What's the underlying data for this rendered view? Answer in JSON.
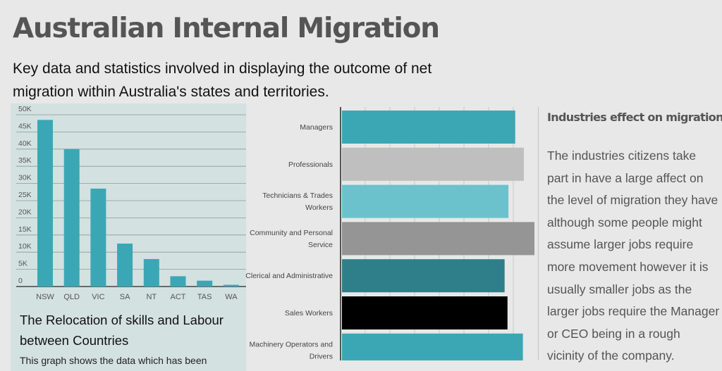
{
  "title": "Australian Internal Migration",
  "subtitle": "Key data and statistics involved in displaying the outcome of net migration within Australia's states and territories.",
  "left_panel": {
    "heading": "The Relocation of skills and Labour between Countries",
    "body_partial": "This graph shows the data which has been"
  },
  "side_panel": {
    "heading": "Industries effect on migration",
    "body": "The industries citizens take part in have a large affect on the level of migration they have although some people might assume larger jobs require more movement however it is usually smaller jobs as the larger jobs require the Manager or CEO being in a rough vicinity of the company."
  },
  "chart_data": [
    {
      "type": "bar",
      "title": "",
      "categories": [
        "NSW",
        "QLD",
        "VIC",
        "SA",
        "NT",
        "ACT",
        "TAS",
        "WA"
      ],
      "values": [
        48500,
        40000,
        28500,
        12500,
        8000,
        3000,
        1700,
        500
      ],
      "y_ticks": [
        "0",
        "5K",
        "10K",
        "15K",
        "20K",
        "25K",
        "30K",
        "35K",
        "40K",
        "45K",
        "50K"
      ],
      "ylim": [
        0,
        50000
      ],
      "xlabel": "",
      "ylabel": "",
      "grid": true,
      "color": "#3ba7b5"
    },
    {
      "type": "bar",
      "orientation": "horizontal",
      "categories": [
        [
          "Managers"
        ],
        [
          "Professionals"
        ],
        [
          "Technicians & Trades",
          "Workers"
        ],
        [
          "Community and Personal",
          "Service"
        ],
        [
          "Clerical and Administrative"
        ],
        [
          "Sales Workers"
        ],
        [
          "Machinery Operators and",
          "Drivers"
        ]
      ],
      "values": [
        90,
        94.5,
        86.5,
        100,
        84.5,
        86,
        94
      ],
      "colors": [
        "#3ba7b5",
        "#bfbfbf",
        "#6cc2cc",
        "#959595",
        "#2e7f8a",
        "#000000",
        "#3ba7b5"
      ],
      "grid": true,
      "xlim": [
        0,
        100
      ]
    }
  ]
}
